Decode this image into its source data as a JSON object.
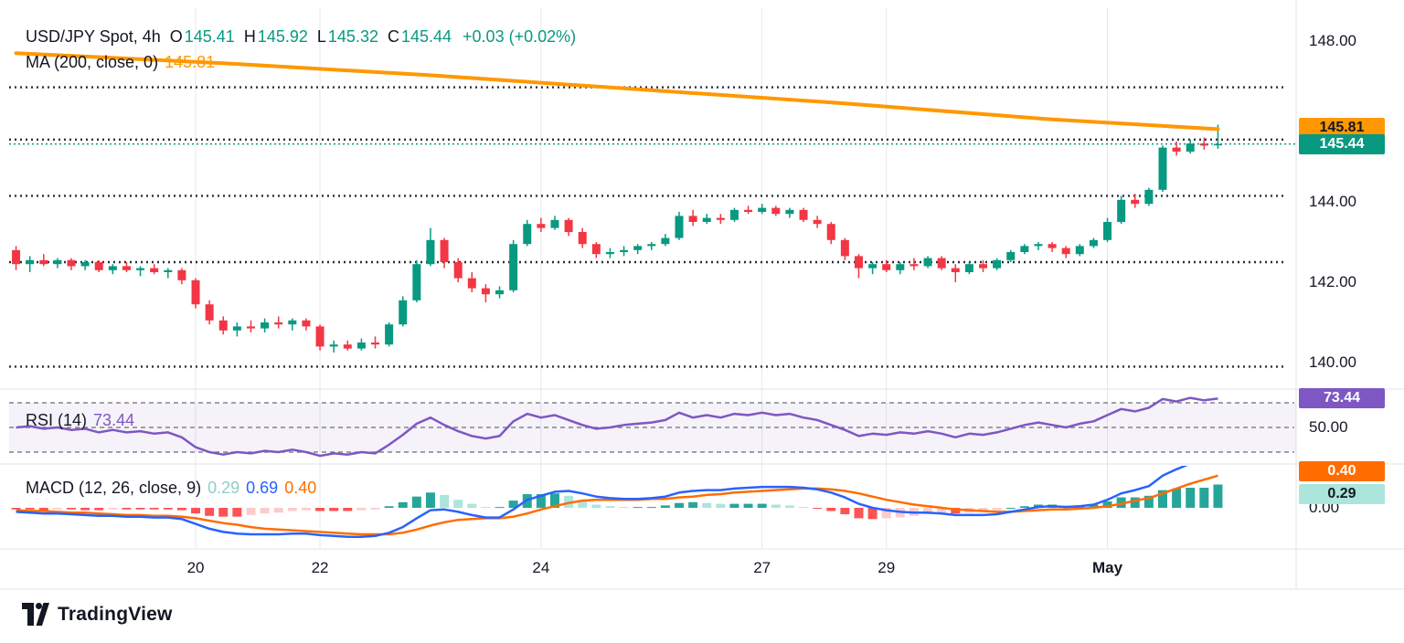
{
  "header": {
    "symbol": "USD/JPY Spot, 4h",
    "ohlc": [
      {
        "k": "O",
        "v": "145.41"
      },
      {
        "k": "H",
        "v": "145.92"
      },
      {
        "k": "L",
        "v": "145.32"
      },
      {
        "k": "C",
        "v": "145.44"
      },
      {
        "k": "",
        "v": "+0.03 (+0.02%)"
      }
    ],
    "ma_label": "MA (200, close, 0)",
    "ma_value": "145.81"
  },
  "rsi_panel": {
    "label": "RSI (14)",
    "value": "73.44",
    "badge": "73.44",
    "mid_label": "50.00"
  },
  "macd_panel": {
    "label": "MACD (12, 26, close, 9)",
    "hist_value": "0.29",
    "macd_value": "0.69",
    "signal_value": "0.40",
    "signal_badge": "0.40",
    "hist_badge": "0.29",
    "zero_label": "0.00"
  },
  "price_scale": {
    "ma_badge": "145.81",
    "last_badge": "145.44"
  },
  "footer": {
    "brand": "TradingView"
  },
  "colors": {
    "up": "#089981",
    "down": "#F23645",
    "ma": "#FF9800",
    "rsi": "#7E57C2",
    "macd": "#2962FF",
    "signal": "#FF6D00",
    "hist_pos": "#26A69A",
    "hist_pos_weak": "#ACE5DC",
    "hist_neg": "#FF5252",
    "hist_neg_weak": "#FCCBCD",
    "level": "#2A2E39",
    "grid": "#E6E9F0",
    "text": "#131722",
    "muted": "#6A6D78",
    "last_badge_bg": "#089981",
    "ma_badge_bg": "#FF9800",
    "rsi_badge_bg": "#7E57C2",
    "sig_badge_bg": "#FF6D00",
    "hist_badge_bg": "#ACE5DC",
    "hist_legend": "#8FCFC4"
  },
  "chart_data": {
    "type": "candlestick",
    "title": "USD/JPY Spot, 4h",
    "last": 145.44,
    "ma_last": 145.81,
    "levels": [
      146.85,
      145.55,
      144.15,
      142.5,
      139.9
    ],
    "price_ticks": [
      {
        "label": "148.00",
        "p": 148
      },
      {
        "label": "144.00",
        "p": 144
      },
      {
        "label": "142.00",
        "p": 142
      },
      {
        "label": "140.00",
        "p": 140
      }
    ],
    "time_ticks": [
      {
        "label": "20",
        "i": 13
      },
      {
        "label": "22",
        "i": 22
      },
      {
        "label": "24",
        "i": 38
      },
      {
        "label": "27",
        "i": 54
      },
      {
        "label": "29",
        "i": 63
      },
      {
        "label": "May",
        "i": 79,
        "bold": true
      }
    ],
    "ma200": [
      [
        0,
        147.7
      ],
      [
        15,
        147.45
      ],
      [
        30,
        147.15
      ],
      [
        45,
        146.8
      ],
      [
        60,
        146.45
      ],
      [
        75,
        146.05
      ],
      [
        87,
        145.81
      ]
    ],
    "rsi_bands": [
      70,
      50,
      30
    ],
    "candles": [
      [
        142.8,
        142.9,
        142.3,
        142.45
      ],
      [
        142.45,
        142.65,
        142.25,
        142.55
      ],
      [
        142.55,
        142.7,
        142.4,
        142.45
      ],
      [
        142.45,
        142.6,
        142.35,
        142.55
      ],
      [
        142.55,
        142.6,
        142.3,
        142.4
      ],
      [
        142.4,
        142.55,
        142.3,
        142.5
      ],
      [
        142.5,
        142.55,
        142.25,
        142.3
      ],
      [
        142.3,
        142.45,
        142.2,
        142.4
      ],
      [
        142.4,
        142.5,
        142.25,
        142.3
      ],
      [
        142.3,
        142.4,
        142.15,
        142.35
      ],
      [
        142.35,
        142.45,
        142.2,
        142.25
      ],
      [
        142.25,
        142.35,
        142.1,
        142.3
      ],
      [
        142.3,
        142.35,
        141.95,
        142.05
      ],
      [
        142.05,
        142.1,
        141.35,
        141.45
      ],
      [
        141.45,
        141.55,
        140.95,
        141.05
      ],
      [
        141.05,
        141.15,
        140.7,
        140.8
      ],
      [
        140.8,
        141.0,
        140.65,
        140.9
      ],
      [
        140.9,
        141.05,
        140.75,
        140.85
      ],
      [
        140.85,
        141.1,
        140.75,
        141.0
      ],
      [
        141.0,
        141.15,
        140.85,
        140.95
      ],
      [
        140.95,
        141.1,
        140.8,
        141.05
      ],
      [
        141.05,
        141.1,
        140.8,
        140.9
      ],
      [
        140.9,
        140.95,
        140.3,
        140.4
      ],
      [
        140.4,
        140.55,
        140.25,
        140.45
      ],
      [
        140.45,
        140.55,
        140.3,
        140.35
      ],
      [
        140.35,
        140.6,
        140.3,
        140.5
      ],
      [
        140.5,
        140.65,
        140.35,
        140.45
      ],
      [
        140.45,
        141.0,
        140.4,
        140.95
      ],
      [
        140.95,
        141.65,
        140.9,
        141.55
      ],
      [
        141.55,
        142.55,
        141.5,
        142.45
      ],
      [
        142.45,
        143.35,
        142.4,
        143.05
      ],
      [
        143.05,
        143.1,
        142.35,
        142.5
      ],
      [
        142.5,
        142.6,
        142.0,
        142.1
      ],
      [
        142.1,
        142.25,
        141.75,
        141.85
      ],
      [
        141.85,
        141.95,
        141.5,
        141.7
      ],
      [
        141.7,
        141.9,
        141.6,
        141.8
      ],
      [
        141.8,
        143.05,
        141.75,
        142.95
      ],
      [
        142.95,
        143.55,
        142.9,
        143.45
      ],
      [
        143.45,
        143.6,
        143.25,
        143.35
      ],
      [
        143.35,
        143.65,
        143.3,
        143.55
      ],
      [
        143.55,
        143.6,
        143.15,
        143.25
      ],
      [
        143.25,
        143.35,
        142.85,
        142.95
      ],
      [
        142.95,
        143.0,
        142.6,
        142.7
      ],
      [
        142.7,
        142.85,
        142.6,
        142.75
      ],
      [
        142.75,
        142.9,
        142.65,
        142.8
      ],
      [
        142.8,
        142.95,
        142.7,
        142.9
      ],
      [
        142.9,
        143.0,
        142.8,
        142.95
      ],
      [
        142.95,
        143.2,
        142.9,
        143.1
      ],
      [
        143.1,
        143.75,
        143.05,
        143.65
      ],
      [
        143.65,
        143.8,
        143.4,
        143.5
      ],
      [
        143.5,
        143.7,
        143.45,
        143.6
      ],
      [
        143.6,
        143.7,
        143.45,
        143.55
      ],
      [
        143.55,
        143.85,
        143.5,
        143.8
      ],
      [
        143.8,
        143.9,
        143.7,
        143.75
      ],
      [
        143.75,
        143.95,
        143.7,
        143.85
      ],
      [
        143.85,
        143.9,
        143.65,
        143.7
      ],
      [
        143.7,
        143.85,
        143.6,
        143.8
      ],
      [
        143.8,
        143.85,
        143.5,
        143.55
      ],
      [
        143.55,
        143.65,
        143.35,
        143.45
      ],
      [
        143.45,
        143.5,
        142.95,
        143.05
      ],
      [
        143.05,
        143.1,
        142.55,
        142.65
      ],
      [
        142.65,
        142.7,
        142.1,
        142.35
      ],
      [
        142.35,
        142.5,
        142.2,
        142.45
      ],
      [
        142.45,
        142.55,
        142.25,
        142.3
      ],
      [
        142.3,
        142.5,
        142.2,
        142.45
      ],
      [
        142.45,
        142.6,
        142.3,
        142.4
      ],
      [
        142.4,
        142.65,
        142.35,
        142.6
      ],
      [
        142.6,
        142.65,
        142.3,
        142.35
      ],
      [
        142.35,
        142.45,
        142.0,
        142.25
      ],
      [
        142.25,
        142.5,
        142.2,
        142.45
      ],
      [
        142.45,
        142.55,
        142.25,
        142.35
      ],
      [
        142.35,
        142.6,
        142.3,
        142.55
      ],
      [
        142.55,
        142.8,
        142.5,
        142.75
      ],
      [
        142.75,
        142.95,
        142.7,
        142.9
      ],
      [
        142.9,
        143.0,
        142.8,
        142.95
      ],
      [
        142.95,
        143.0,
        142.75,
        142.85
      ],
      [
        142.85,
        142.9,
        142.6,
        142.7
      ],
      [
        142.7,
        142.95,
        142.65,
        142.9
      ],
      [
        142.9,
        143.1,
        142.85,
        143.05
      ],
      [
        143.05,
        143.6,
        143.0,
        143.5
      ],
      [
        143.5,
        144.15,
        143.45,
        144.05
      ],
      [
        144.05,
        144.2,
        143.85,
        143.95
      ],
      [
        143.95,
        144.35,
        143.9,
        144.3
      ],
      [
        144.3,
        145.4,
        144.25,
        145.35
      ],
      [
        145.35,
        145.5,
        145.15,
        145.25
      ],
      [
        145.25,
        145.55,
        145.2,
        145.45
      ],
      [
        145.45,
        145.6,
        145.3,
        145.4
      ],
      [
        145.41,
        145.92,
        145.32,
        145.44
      ]
    ],
    "rsi": [
      50,
      51,
      49,
      50,
      48,
      49,
      46,
      48,
      46,
      47,
      45,
      46,
      42,
      34,
      30,
      28,
      30,
      29,
      31,
      30,
      32,
      30,
      27,
      29,
      28,
      30,
      29,
      36,
      44,
      53,
      58,
      52,
      47,
      43,
      41,
      43,
      55,
      61,
      58,
      60,
      56,
      52,
      49,
      50,
      52,
      53,
      54,
      56,
      62,
      58,
      60,
      58,
      61,
      60,
      62,
      60,
      61,
      58,
      56,
      52,
      48,
      43,
      45,
      44,
      46,
      45,
      47,
      45,
      42,
      45,
      44,
      46,
      49,
      52,
      54,
      52,
      50,
      53,
      55,
      60,
      65,
      63,
      66,
      73,
      71,
      74,
      72,
      73.44
    ],
    "macd": [
      -0.05,
      -0.06,
      -0.07,
      -0.07,
      -0.08,
      -0.09,
      -0.1,
      -0.1,
      -0.11,
      -0.11,
      -0.12,
      -0.12,
      -0.14,
      -0.2,
      -0.26,
      -0.3,
      -0.32,
      -0.33,
      -0.33,
      -0.33,
      -0.32,
      -0.32,
      -0.34,
      -0.35,
      -0.36,
      -0.36,
      -0.35,
      -0.31,
      -0.24,
      -0.13,
      -0.03,
      -0.02,
      -0.05,
      -0.09,
      -0.12,
      -0.12,
      -0.02,
      0.1,
      0.15,
      0.2,
      0.21,
      0.18,
      0.14,
      0.12,
      0.11,
      0.11,
      0.12,
      0.14,
      0.19,
      0.21,
      0.22,
      0.22,
      0.24,
      0.25,
      0.26,
      0.26,
      0.26,
      0.25,
      0.23,
      0.19,
      0.13,
      0.05,
      0.0,
      -0.03,
      -0.05,
      -0.06,
      -0.06,
      -0.07,
      -0.09,
      -0.09,
      -0.09,
      -0.08,
      -0.05,
      -0.02,
      0.01,
      0.02,
      0.01,
      0.02,
      0.04,
      0.1,
      0.18,
      0.22,
      0.27,
      0.4,
      0.48,
      0.55,
      0.6,
      0.69
    ],
    "signal": [
      -0.03,
      -0.04,
      -0.04,
      -0.05,
      -0.06,
      -0.06,
      -0.07,
      -0.08,
      -0.09,
      -0.09,
      -0.1,
      -0.1,
      -0.11,
      -0.13,
      -0.16,
      -0.19,
      -0.21,
      -0.24,
      -0.26,
      -0.27,
      -0.28,
      -0.29,
      -0.3,
      -0.31,
      -0.32,
      -0.33,
      -0.33,
      -0.33,
      -0.31,
      -0.27,
      -0.22,
      -0.18,
      -0.15,
      -0.14,
      -0.13,
      -0.13,
      -0.11,
      -0.07,
      -0.02,
      0.02,
      0.06,
      0.09,
      0.1,
      0.1,
      0.1,
      0.1,
      0.11,
      0.11,
      0.13,
      0.14,
      0.16,
      0.17,
      0.19,
      0.2,
      0.21,
      0.22,
      0.23,
      0.24,
      0.24,
      0.23,
      0.21,
      0.18,
      0.14,
      0.1,
      0.07,
      0.04,
      0.02,
      0.0,
      -0.02,
      -0.03,
      -0.04,
      -0.05,
      -0.05,
      -0.04,
      -0.03,
      -0.02,
      -0.02,
      -0.01,
      0.0,
      0.02,
      0.05,
      0.09,
      0.12,
      0.18,
      0.24,
      0.3,
      0.35,
      0.4
    ]
  }
}
